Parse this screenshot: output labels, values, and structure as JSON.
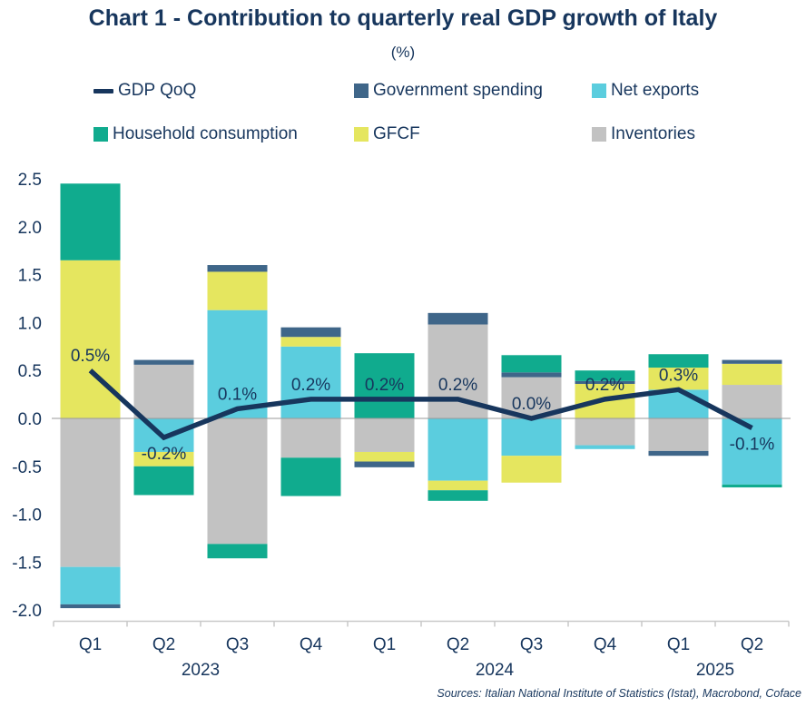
{
  "title": "Chart 1 - Contribution to quarterly real GDP growth of Italy",
  "subtitle": "(%)",
  "source_note": "Sources: Italian National Institute of Statistics (Istat), Macrobond, Coface",
  "colors": {
    "text": "#17365d",
    "line": "#17365d",
    "zero_line": "#999999",
    "axis_line": "#c9c9c9",
    "background": "#ffffff"
  },
  "legend": {
    "rows": [
      [
        "gdp",
        "gov",
        "nx"
      ],
      [
        "hh",
        "gfcf",
        "inv"
      ]
    ]
  },
  "chart_data": {
    "type": "bar",
    "subtype": "stacked-bar-with-line",
    "title": "Chart 1 - Contribution to quarterly real GDP growth of Italy",
    "unit": "%",
    "ylim": [
      -2.0,
      2.5
    ],
    "ytick_step": 0.5,
    "grid": false,
    "legend_position": "top",
    "categories": [
      "Q1",
      "Q2",
      "Q3",
      "Q4",
      "Q1",
      "Q2",
      "Q3",
      "Q4",
      "Q1",
      "Q2"
    ],
    "year_groups": [
      {
        "label": "2023",
        "from": 0,
        "to": 3
      },
      {
        "label": "2024",
        "from": 4,
        "to": 7
      },
      {
        "label": "2025",
        "from": 8,
        "to": 9
      }
    ],
    "series": [
      {
        "key": "hh",
        "name": "Household consumption",
        "color": "#10ab8e"
      },
      {
        "key": "gfcf",
        "name": "GFCF",
        "color": "#e5e65f"
      },
      {
        "key": "gov",
        "name": "Government spending",
        "color": "#3f6689"
      },
      {
        "key": "nx",
        "name": "Net exports",
        "color": "#5bcdde"
      },
      {
        "key": "inv",
        "name": "Inventories",
        "color": "#c2c2c2"
      }
    ],
    "line": {
      "key": "gdp",
      "name": "GDP QoQ",
      "color": "#17365d",
      "values": [
        0.5,
        -0.2,
        0.1,
        0.2,
        0.2,
        0.2,
        0.0,
        0.2,
        0.3,
        -0.1
      ],
      "labels": [
        "0.5%",
        "-0.2%",
        "0.1%",
        "0.2%",
        "0.2%",
        "0.2%",
        "0.0%",
        "0.2%",
        "0.3%",
        "-0.1%"
      ],
      "label_side": [
        "above",
        "below",
        "above",
        "above",
        "above",
        "above",
        "above",
        "above",
        "above",
        "below"
      ]
    },
    "bars": [
      {
        "category": "Q1 2023",
        "pos": [
          [
            "gfcf",
            1.65
          ],
          [
            "hh",
            0.8
          ]
        ],
        "neg": [
          [
            "inv",
            -1.55
          ],
          [
            "nx",
            -0.39
          ],
          [
            "gov",
            -0.04
          ]
        ]
      },
      {
        "category": "Q2 2023",
        "pos": [
          [
            "inv",
            0.56
          ],
          [
            "gov",
            0.05
          ]
        ],
        "neg": [
          [
            "nx",
            -0.35
          ],
          [
            "gfcf",
            -0.15
          ],
          [
            "hh",
            -0.3
          ]
        ]
      },
      {
        "category": "Q3 2023",
        "pos": [
          [
            "nx",
            1.13
          ],
          [
            "gfcf",
            0.4
          ],
          [
            "gov",
            0.07
          ]
        ],
        "neg": [
          [
            "inv",
            -1.31
          ],
          [
            "hh",
            -0.15
          ]
        ]
      },
      {
        "category": "Q4 2023",
        "pos": [
          [
            "nx",
            0.75
          ],
          [
            "gfcf",
            0.1
          ],
          [
            "gov",
            0.1
          ]
        ],
        "neg": [
          [
            "inv",
            -0.41
          ],
          [
            "hh",
            -0.4
          ]
        ]
      },
      {
        "category": "Q1 2024",
        "pos": [
          [
            "hh",
            0.68
          ]
        ],
        "neg": [
          [
            "inv",
            -0.35
          ],
          [
            "gfcf",
            -0.1
          ],
          [
            "gov",
            -0.06
          ]
        ]
      },
      {
        "category": "Q2 2024",
        "pos": [
          [
            "inv",
            0.98
          ],
          [
            "gov",
            0.12
          ]
        ],
        "neg": [
          [
            "nx",
            -0.65
          ],
          [
            "gfcf",
            -0.1
          ],
          [
            "hh",
            -0.11
          ]
        ]
      },
      {
        "category": "Q3 2024",
        "pos": [
          [
            "inv",
            0.43
          ],
          [
            "gov",
            0.05
          ],
          [
            "hh",
            0.18
          ]
        ],
        "neg": [
          [
            "nx",
            -0.39
          ],
          [
            "gfcf",
            -0.28
          ]
        ]
      },
      {
        "category": "Q4 2024",
        "pos": [
          [
            "gfcf",
            0.36
          ],
          [
            "gov",
            0.03
          ],
          [
            "hh",
            0.11
          ]
        ],
        "neg": [
          [
            "inv",
            -0.28
          ],
          [
            "nx",
            -0.04
          ]
        ]
      },
      {
        "category": "Q1 2025",
        "pos": [
          [
            "nx",
            0.3
          ],
          [
            "gfcf",
            0.23
          ],
          [
            "hh",
            0.14
          ]
        ],
        "neg": [
          [
            "inv",
            -0.34
          ],
          [
            "gov",
            -0.05
          ]
        ]
      },
      {
        "category": "Q2 2025",
        "pos": [
          [
            "inv",
            0.35
          ],
          [
            "gfcf",
            0.22
          ],
          [
            "gov",
            0.04
          ]
        ],
        "neg": [
          [
            "nx",
            -0.69
          ],
          [
            "hh",
            -0.03
          ]
        ]
      }
    ]
  }
}
